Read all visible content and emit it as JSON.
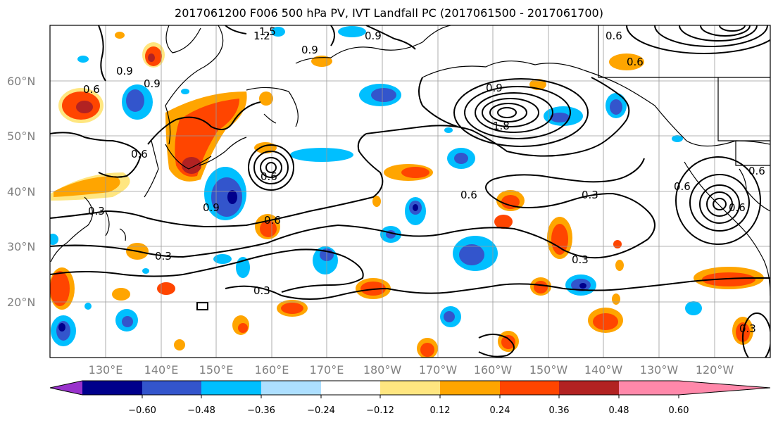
{
  "title": "2017061200 F006 500 hPa PV, IVT Landfall PC (2017061500 - 2017061700)",
  "lat_labels": [
    "60°N",
    "50°N",
    "40°N",
    "30°N",
    "20°N"
  ],
  "lon_labels": [
    "130°E",
    "140°E",
    "150°E",
    "160°E",
    "170°E",
    "180°W",
    "170°W",
    "160°W",
    "150°W",
    "140°W",
    "130°W",
    "120°W"
  ],
  "colorbar": {
    "ticks": [
      "−0.60",
      "−0.48",
      "−0.36",
      "−0.24",
      "−0.12",
      "0.12",
      "0.24",
      "0.36",
      "0.48",
      "0.60"
    ],
    "colors": [
      "#9932CC",
      "#00008B",
      "#3355CC",
      "#00BFFF",
      "#ADDFFF",
      "#FFFFFF",
      "#FFE680",
      "#FFA500",
      "#FF4500",
      "#B22222",
      "#FF88AA"
    ]
  },
  "contour_labels": [
    "1.2",
    "1.5",
    "0.9",
    "0.9",
    "0.9",
    "0.9",
    "0.6",
    "0.6",
    "0.6",
    "0.6",
    "0.6",
    "0.6",
    "0.3",
    "0.3",
    "0.3",
    "0.3",
    "0.3",
    "0.9",
    "1.8",
    "0.9",
    "0.6",
    "0.6",
    "0.6",
    "0.6",
    "0.3"
  ]
}
